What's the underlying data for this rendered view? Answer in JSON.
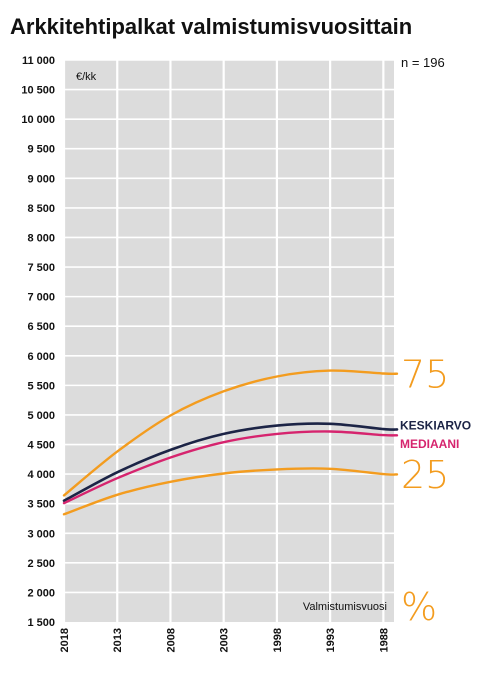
{
  "chart_data": {
    "type": "line",
    "title": "Arkkitehtipalkat valmistumisvuosittain",
    "unit_label": "€/kk",
    "sample_label": "n = 196",
    "xlabel": "Valmistumisvuosi",
    "x_ticks": [
      "2018",
      "2013",
      "2008",
      "2003",
      "1998",
      "1993",
      "1988"
    ],
    "xlim": [
      2018,
      1987
    ],
    "ylim": [
      1500,
      11000
    ],
    "y_ticks": [
      "1 500",
      "2 000",
      "2 500",
      "3 000",
      "3 500",
      "4 000",
      "4 500",
      "5 000",
      "5 500",
      "6 000",
      "6 500",
      "7 000",
      "7 500",
      "8 000",
      "8 500",
      "9 000",
      "9 500",
      "10 000",
      "10 500",
      "11 000"
    ],
    "grid": true,
    "series": [
      {
        "name": "75",
        "color": "#f39c1f",
        "points": [
          [
            2018,
            3640
          ],
          [
            2013,
            4380
          ],
          [
            2008,
            4990
          ],
          [
            2003,
            5400
          ],
          [
            1998,
            5650
          ],
          [
            1993,
            5750
          ],
          [
            1988,
            5700
          ]
        ]
      },
      {
        "name": "KESKIARVO",
        "color": "#1c2446",
        "points": [
          [
            2018,
            3550
          ],
          [
            2013,
            4030
          ],
          [
            2008,
            4410
          ],
          [
            2003,
            4680
          ],
          [
            1998,
            4820
          ],
          [
            1993,
            4850
          ],
          [
            1988,
            4760
          ]
        ]
      },
      {
        "name": "MEDIAANI",
        "color": "#d6246e",
        "points": [
          [
            2018,
            3510
          ],
          [
            2013,
            3930
          ],
          [
            2008,
            4280
          ],
          [
            2003,
            4540
          ],
          [
            1998,
            4680
          ],
          [
            1993,
            4720
          ],
          [
            1988,
            4660
          ]
        ]
      },
      {
        "name": "25",
        "color": "#f39c1f",
        "points": [
          [
            2018,
            3320
          ],
          [
            2013,
            3650
          ],
          [
            2008,
            3870
          ],
          [
            2003,
            4010
          ],
          [
            1998,
            4080
          ],
          [
            1993,
            4090
          ],
          [
            1988,
            4000
          ]
        ]
      }
    ],
    "percent_label": "%"
  }
}
